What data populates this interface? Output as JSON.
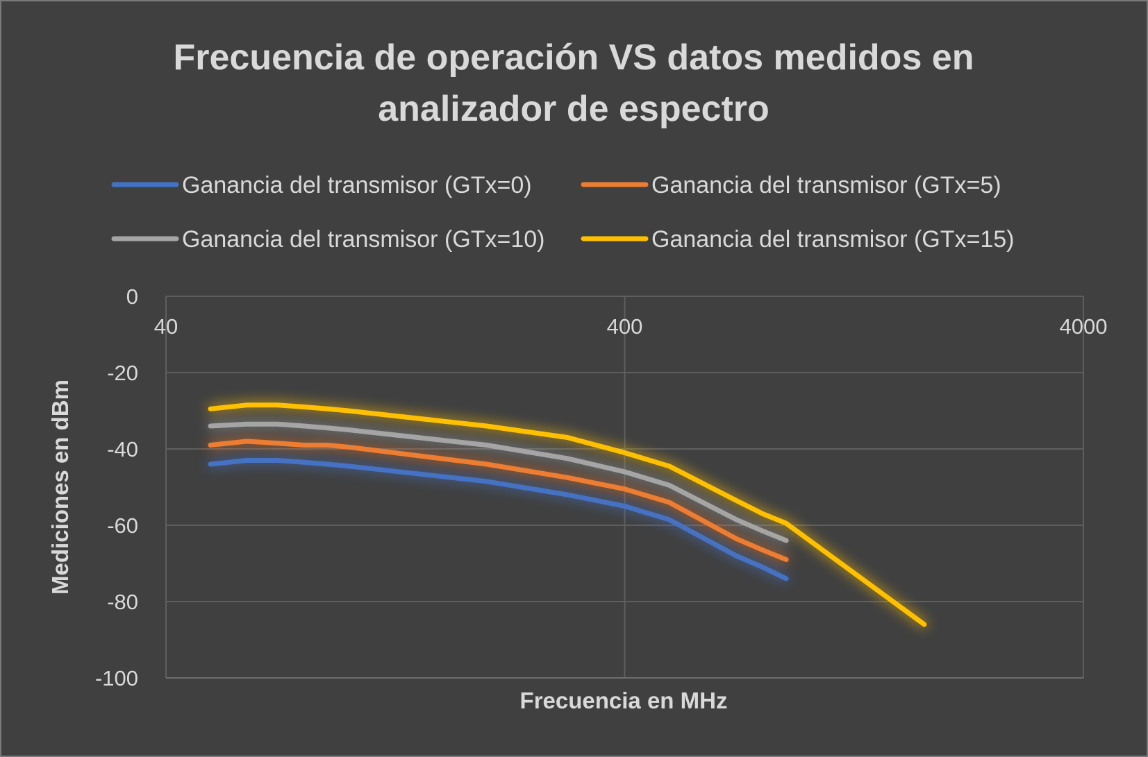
{
  "chart_data": {
    "type": "line",
    "title_lines": [
      "Frecuencia de operación VS datos medidos en",
      "analizador de espectro"
    ],
    "xlabel": "Frecuencia en MHz",
    "ylabel": "Mediciones  en dBm",
    "x_scale": "log",
    "xlim": [
      40,
      4000
    ],
    "ylim": [
      -100,
      0
    ],
    "x_ticks": [
      {
        "value": 40,
        "label": "40"
      },
      {
        "value": 400,
        "label": "400"
      },
      {
        "value": 4000,
        "label": "4000"
      }
    ],
    "y_ticks": [
      {
        "value": 0,
        "label": "0"
      },
      {
        "value": -20,
        "label": "-20"
      },
      {
        "value": -40,
        "label": "-40"
      },
      {
        "value": -60,
        "label": "-60"
      },
      {
        "value": -80,
        "label": "-80"
      },
      {
        "value": -100,
        "label": "-100"
      }
    ],
    "grid": true,
    "legend_position": "top",
    "series": [
      {
        "name": "Ganancia del transmisor (GTx=0)",
        "color": "#4472c4",
        "x": [
          50,
          60,
          70,
          80,
          90,
          100,
          200,
          300,
          400,
          500,
          700,
          800,
          900
        ],
        "y": [
          -44,
          -43,
          -43,
          -43.5,
          -44,
          -44.5,
          -48.5,
          -52,
          -55,
          -58.5,
          -68,
          -71,
          -74
        ]
      },
      {
        "name": "Ganancia del transmisor (GTx=5)",
        "color": "#ed7d31",
        "x": [
          50,
          60,
          70,
          80,
          90,
          100,
          200,
          300,
          400,
          500,
          700,
          800,
          900
        ],
        "y": [
          -39,
          -38,
          -38.5,
          -39,
          -39,
          -39.5,
          -44,
          -47.5,
          -50.5,
          -54,
          -63.5,
          -66.5,
          -69
        ]
      },
      {
        "name": "Ganancia del transmisor (GTx=10)",
        "color": "#a5a5a5",
        "x": [
          50,
          60,
          70,
          80,
          90,
          100,
          200,
          300,
          400,
          500,
          700,
          800,
          900
        ],
        "y": [
          -34,
          -33.5,
          -33.5,
          -34,
          -34.5,
          -35,
          -39,
          -42.5,
          -46,
          -49.5,
          -58.5,
          -61.5,
          -64
        ]
      },
      {
        "name": "Ganancia del transmisor (GTx=15)",
        "color": "#ffc000",
        "x": [
          50,
          60,
          70,
          80,
          90,
          100,
          200,
          300,
          400,
          500,
          700,
          800,
          900,
          1800
        ],
        "y": [
          -29.5,
          -28.5,
          -28.5,
          -29,
          -29.5,
          -30,
          -34,
          -37,
          -41,
          -44.5,
          -53.5,
          -57,
          -59.5,
          -86
        ]
      }
    ]
  }
}
